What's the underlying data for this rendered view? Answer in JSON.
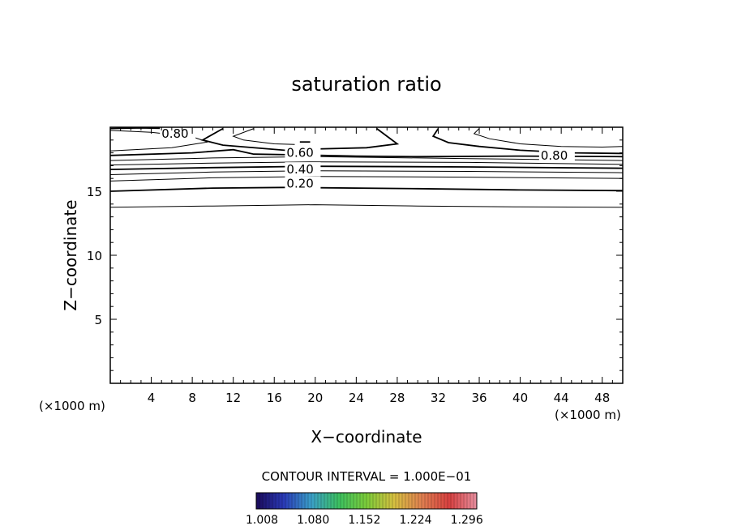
{
  "chart_data": {
    "type": "contour",
    "title": "saturation ratio",
    "xlabel": "X−coordinate",
    "ylabel": "Z−coordinate",
    "xunit_left": "(×1000 m)",
    "xunit_right": "(×1000 m)",
    "xlim": [
      0,
      50
    ],
    "ylim": [
      0,
      20
    ],
    "xticks": [
      "4",
      "8",
      "12",
      "16",
      "20",
      "24",
      "28",
      "32",
      "36",
      "40",
      "44",
      "48"
    ],
    "xtick_values": [
      4,
      8,
      12,
      16,
      20,
      24,
      28,
      32,
      36,
      40,
      44,
      48
    ],
    "yticks": [
      "5",
      "10",
      "15"
    ],
    "ytick_values": [
      5,
      10,
      15
    ],
    "contour_interval_text": "CONTOUR INTERVAL = 1.000E−01",
    "contour_labels": [
      {
        "text": "0.20",
        "x": 17.2,
        "z": 15.6
      },
      {
        "text": "0.40",
        "x": 17.2,
        "z": 16.7
      },
      {
        "text": "0.60",
        "x": 17.2,
        "z": 18.0
      },
      {
        "text": "0.80",
        "x": 5.0,
        "z": 19.5
      },
      {
        "text": "0.80",
        "x": 42.0,
        "z": 17.8
      }
    ],
    "colorbar": {
      "ticks": [
        "1.008",
        "1.080",
        "1.152",
        "1.224",
        "1.296"
      ],
      "range": [
        1.0,
        1.31
      ],
      "colors": [
        "#1a0a5a",
        "#2a3ab8",
        "#3aa0c8",
        "#3cc060",
        "#7ccc3a",
        "#d6c040",
        "#e08050",
        "#d84040",
        "#e890a0"
      ]
    }
  }
}
